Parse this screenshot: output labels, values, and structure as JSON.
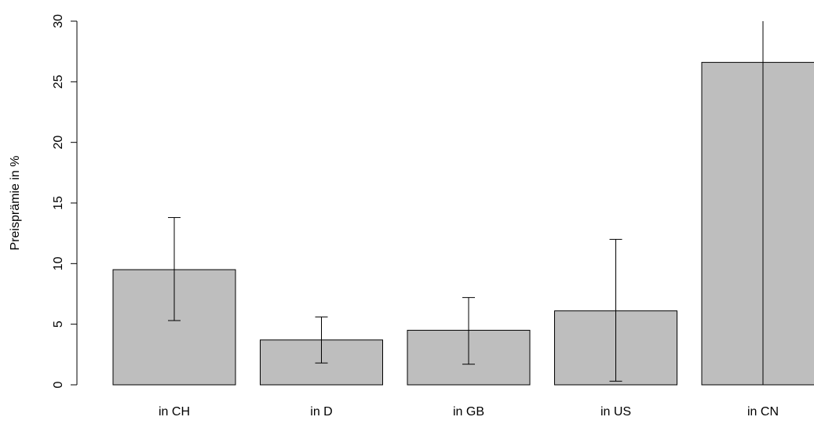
{
  "chart_data": {
    "type": "bar",
    "title": "",
    "xlabel": "",
    "ylabel": "Preisprämie in %",
    "categories": [
      "in CH",
      "in D",
      "in GB",
      "in US",
      "in CN"
    ],
    "values": [
      9.5,
      3.7,
      4.5,
      6.1,
      26.6
    ],
    "error_low": [
      5.3,
      1.8,
      1.7,
      0.3,
      0
    ],
    "error_high": [
      13.8,
      5.6,
      7.2,
      12.0,
      30
    ],
    "ylim": [
      0,
      30
    ],
    "yticks": [
      0,
      5,
      10,
      15,
      20,
      25,
      30
    ],
    "ytick_labels": [
      "0",
      "5",
      "10",
      "15",
      "20",
      "25",
      "30"
    ],
    "grid": false,
    "legend": "none",
    "bar_color": "#bebebe",
    "edge_color": "#000000"
  }
}
